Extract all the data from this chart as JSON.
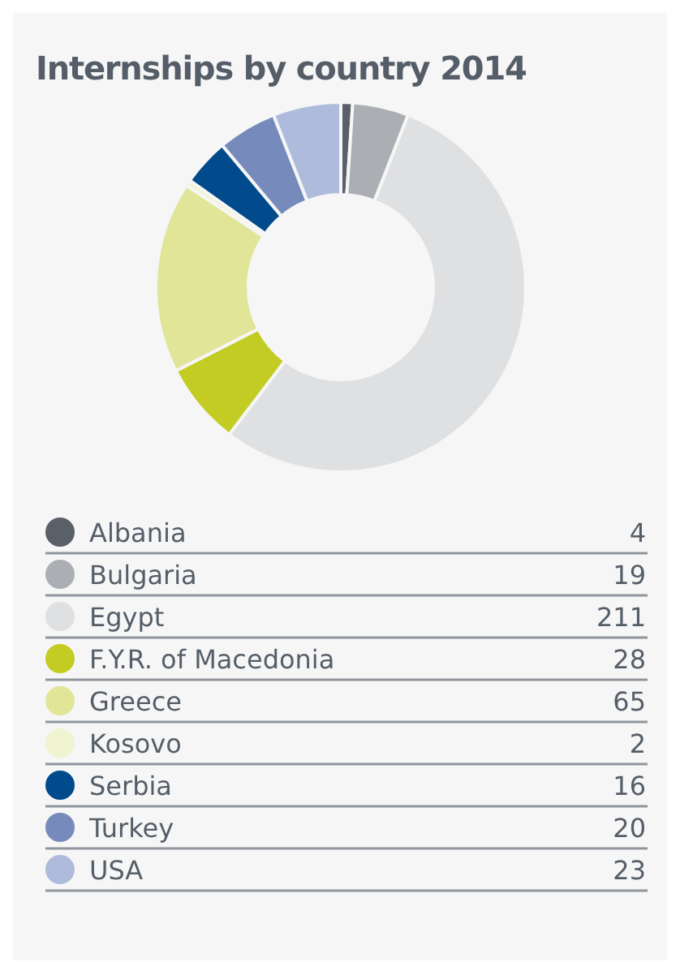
{
  "chart_data": {
    "type": "donut",
    "title": "Internships by country 2014",
    "categories": [
      "Albania",
      "Bulgaria",
      "Egypt",
      "F.Y.R. of Macedonia",
      "Greece",
      "Kosovo",
      "Serbia",
      "Turkey",
      "USA"
    ],
    "values": [
      4,
      19,
      211,
      28,
      65,
      2,
      16,
      20,
      23
    ],
    "colors": [
      "#5a6068",
      "#abafb3",
      "#dfe0e2",
      "#c3cc22",
      "#e1e597",
      "#eff3cf",
      "#014a8c",
      "#768bbb",
      "#afbbdc"
    ],
    "legend": "bottom",
    "data_labels": true
  }
}
